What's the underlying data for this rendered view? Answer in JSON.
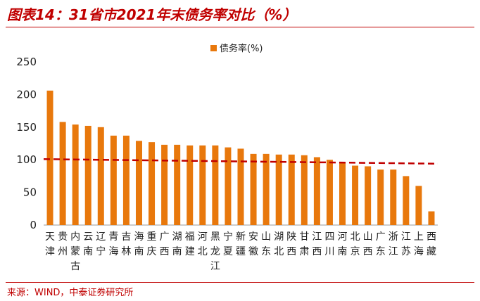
{
  "title": "图表14：31省市2021年末债务率对比（%）",
  "source": "来源：WIND，中泰证券研究所",
  "colors": {
    "bar": "#e8780c",
    "reference_line": "#c00000",
    "title": "#c00000"
  },
  "chart_data": {
    "type": "bar",
    "title": "",
    "xlabel": "",
    "ylabel": "",
    "ylim": [
      0,
      250
    ],
    "yticks": [
      0,
      50,
      100,
      150,
      200,
      250
    ],
    "grid": false,
    "legend": "top-right",
    "reference_line_value": 101,
    "categories": [
      "天津",
      "贵州",
      "内蒙古",
      "云南",
      "辽宁",
      "青海",
      "吉林",
      "海南",
      "重庆",
      "广西",
      "湖南",
      "福建",
      "河北",
      "黑龙江",
      "宁夏",
      "新疆",
      "安徽",
      "山东",
      "湖北",
      "陕西",
      "甘肃",
      "江西",
      "四川",
      "河南",
      "北京",
      "山西",
      "广东",
      "浙江",
      "江苏",
      "上海",
      "西藏"
    ],
    "series": [
      {
        "name": "债务率(%)",
        "values": [
          206,
          158,
          154,
          152,
          150,
          137,
          137,
          129,
          127,
          123,
          123,
          122,
          122,
          122,
          119,
          117,
          109,
          109,
          108,
          108,
          107,
          104,
          100,
          96,
          91,
          90,
          85,
          85,
          75,
          60,
          21
        ]
      }
    ]
  }
}
